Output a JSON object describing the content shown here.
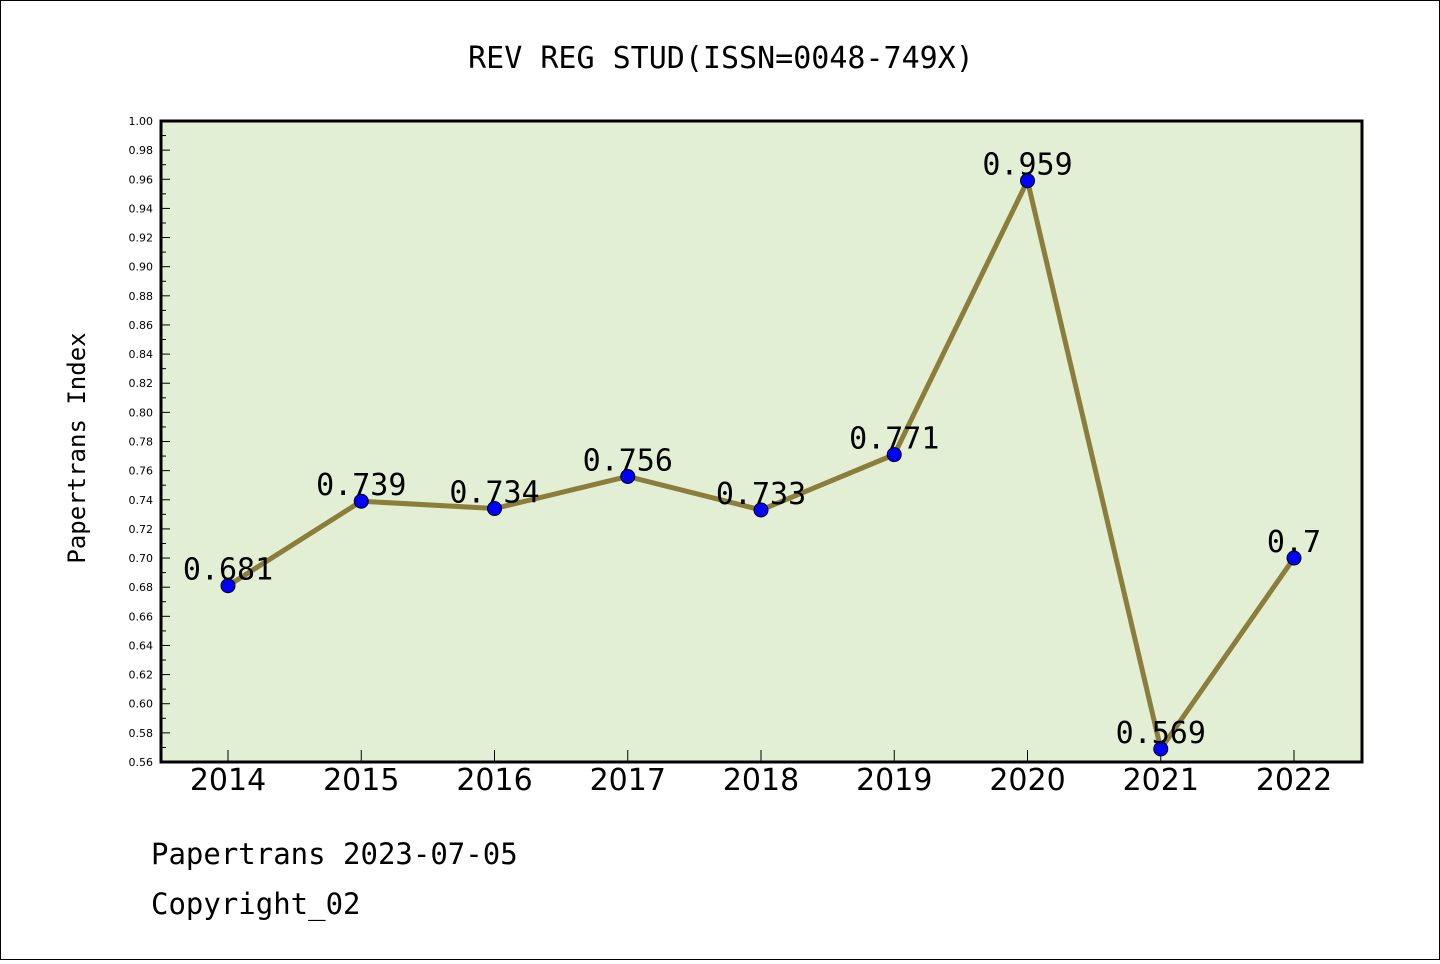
{
  "chart_data": {
    "type": "line",
    "title": "REV REG STUD(ISSN=0048-749X)",
    "xlabel": "",
    "ylabel": "Papertrans Index",
    "categories": [
      "2014",
      "2015",
      "2016",
      "2017",
      "2018",
      "2019",
      "2020",
      "2021",
      "2022"
    ],
    "series": [
      {
        "values": [
          0.681,
          0.739,
          0.734,
          0.756,
          0.733,
          0.771,
          0.959,
          0.569,
          0.7
        ],
        "labels": [
          "0.681",
          "0.739",
          "0.734",
          "0.756",
          "0.733",
          "0.771",
          "0.959",
          "0.569",
          "0.7"
        ]
      }
    ],
    "ylim": [
      0.56,
      1.0
    ],
    "yticks": [
      "0.56",
      "0.58",
      "0.60",
      "0.62",
      "0.64",
      "0.66",
      "0.68",
      "0.70",
      "0.72",
      "0.74",
      "0.76",
      "0.78",
      "0.80",
      "0.82",
      "0.84",
      "0.86",
      "0.88",
      "0.90",
      "0.92",
      "0.94",
      "0.96",
      "0.98",
      "1.00"
    ],
    "grid": false,
    "colors": {
      "plot_background": "#e2efd5",
      "line": "#8b7d3a",
      "marker": "#0000ff"
    }
  },
  "footer": {
    "line1": "Papertrans 2023-07-05",
    "line2": "Copyright_02"
  }
}
